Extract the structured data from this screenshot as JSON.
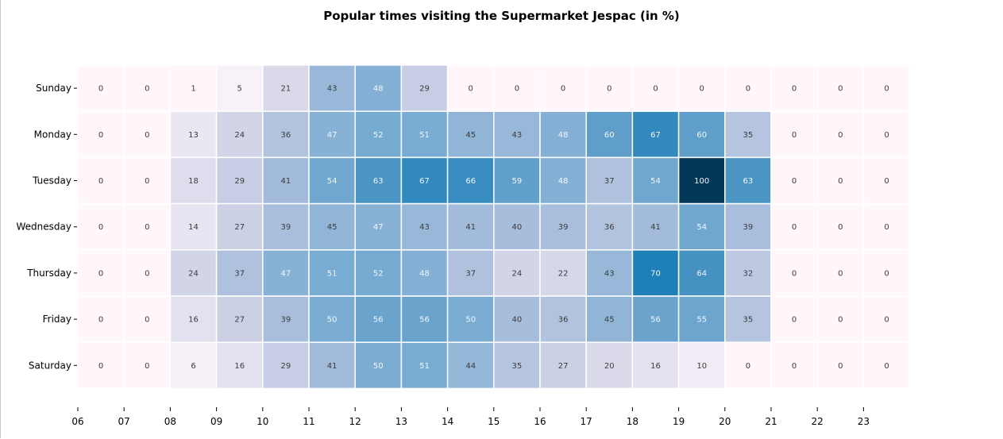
{
  "chart_data": {
    "type": "heatmap",
    "title": "Popular times visiting the Supermarket Jespac (in %)",
    "xlabel": "",
    "ylabel": "",
    "rows": [
      "Sunday",
      "Monday",
      "Tuesday",
      "Wednesday",
      "Thursday",
      "Friday",
      "Saturday"
    ],
    "x_ticks": [
      "06",
      "07",
      "08",
      "09",
      "10",
      "11",
      "12",
      "13",
      "14",
      "15",
      "16",
      "17",
      "18",
      "19",
      "20",
      "21",
      "22",
      "23"
    ],
    "value_range": [
      0,
      100
    ],
    "colormap": "PuBu",
    "values": [
      [
        0,
        0,
        1,
        5,
        21,
        43,
        48,
        29,
        0,
        0,
        0,
        0,
        0,
        0,
        0,
        0,
        0,
        0
      ],
      [
        0,
        0,
        13,
        24,
        36,
        47,
        52,
        51,
        45,
        43,
        48,
        60,
        67,
        60,
        35,
        0,
        0,
        0
      ],
      [
        0,
        0,
        18,
        29,
        41,
        54,
        63,
        67,
        66,
        59,
        48,
        37,
        54,
        100,
        63,
        0,
        0,
        0
      ],
      [
        0,
        0,
        14,
        27,
        39,
        45,
        47,
        43,
        41,
        40,
        39,
        36,
        41,
        54,
        39,
        0,
        0,
        0
      ],
      [
        0,
        0,
        24,
        37,
        47,
        51,
        52,
        48,
        37,
        24,
        22,
        43,
        70,
        64,
        32,
        0,
        0,
        0
      ],
      [
        0,
        0,
        16,
        27,
        39,
        50,
        56,
        56,
        50,
        40,
        36,
        45,
        56,
        55,
        35,
        0,
        0,
        0
      ],
      [
        0,
        0,
        6,
        16,
        29,
        41,
        50,
        51,
        44,
        35,
        27,
        20,
        16,
        10,
        0,
        0,
        0,
        0
      ]
    ]
  }
}
